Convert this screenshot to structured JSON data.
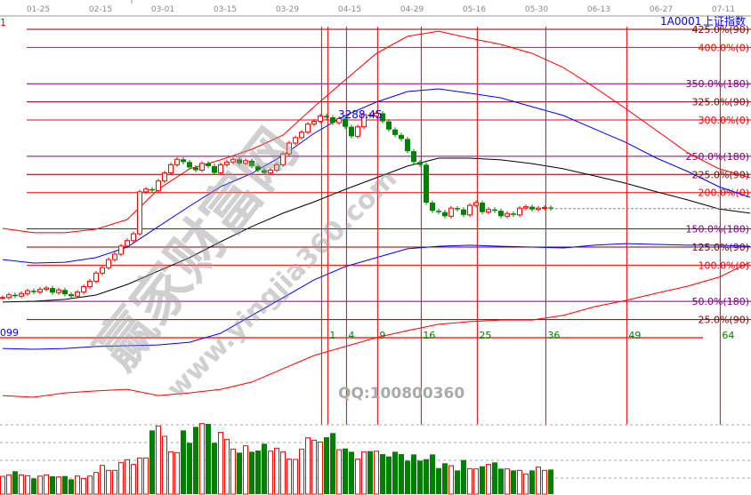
{
  "header": {
    "dates": [
      "01-25",
      "02-15",
      "03-01",
      "03-15",
      "03-29",
      "04-15",
      "04-29",
      "05-16",
      "05-30",
      "06-13",
      "06-27",
      "07-11"
    ],
    "left_label": "1",
    "symbol": "1A0001",
    "name": "上证指数"
  },
  "watermark": {
    "logo_text": "赢家财富网",
    "url": "www.yingjia360.com",
    "qq": "QQ:100800360"
  },
  "colors": {
    "up": "#ff0000",
    "down": "#008000",
    "level_0": "#ff0000",
    "level_90": "#800000",
    "level_180": "#800080",
    "fib_time": "#ff0000",
    "symbol": "#0000ff"
  },
  "chart_data": {
    "type": "candlestick",
    "high_label": "3288.45",
    "low_label": "099",
    "close": [
      2600,
      2610,
      2605,
      2615,
      2625,
      2620,
      2630,
      2635,
      2618,
      2628,
      2612,
      2605,
      2620,
      2640,
      2660,
      2690,
      2710,
      2740,
      2760,
      2790,
      2810,
      2835,
      2990,
      3000,
      2995,
      3030,
      3060,
      3090,
      3110,
      3100,
      3080,
      3070,
      3095,
      3085,
      3060,
      3090,
      3100,
      3110,
      3095,
      3105,
      3085,
      3070,
      3060,
      3070,
      3090,
      3130,
      3170,
      3190,
      3210,
      3240,
      3250,
      3270,
      3265,
      3245,
      3260,
      3230,
      3195,
      3230,
      3275,
      3270,
      3280,
      3250,
      3220,
      3200,
      3185,
      3140,
      3100,
      3090,
      2950,
      2920,
      2915,
      2900,
      2930,
      2925,
      2905,
      2940,
      2950,
      2915,
      2925,
      2920,
      2900,
      2910,
      2905,
      2930,
      2935,
      2925,
      2930,
      2932,
      2928
    ],
    "volume": [
      60,
      65,
      77,
      65,
      62,
      53,
      61,
      65,
      60,
      58,
      61,
      50,
      61,
      53,
      61,
      73,
      97,
      80,
      80,
      107,
      116,
      100,
      122,
      122,
      215,
      230,
      195,
      143,
      140,
      215,
      173,
      227,
      238,
      237,
      173,
      208,
      185,
      152,
      140,
      163,
      143,
      147,
      170,
      145,
      155,
      143,
      118,
      117,
      152,
      190,
      182,
      176,
      192,
      206,
      150,
      154,
      143,
      118,
      143,
      145,
      145,
      135,
      127,
      143,
      135,
      113,
      134,
      113,
      118,
      134,
      88,
      104,
      96,
      80,
      115,
      86,
      85,
      94,
      100,
      107,
      86,
      85,
      80,
      80,
      68,
      80,
      91,
      80,
      83
    ],
    "curves_sample_step": 5,
    "curves": [
      {
        "color": "#ff0000",
        "values": [
          2855,
          2839,
          2839,
          2852,
          2888,
          3000,
          3075,
          3108,
          3147,
          3199,
          3304,
          3403,
          3501,
          3564,
          3583,
          3557,
          3534,
          3501,
          3449,
          3376,
          3298,
          3216,
          3134,
          3075,
          3042
        ]
      },
      {
        "color": "#0000ff",
        "values": [
          2740,
          2727,
          2730,
          2747,
          2786,
          2862,
          2937,
          3009,
          3058,
          3124,
          3206,
          3272,
          3321,
          3360,
          3370,
          3354,
          3337,
          3304,
          3272,
          3222,
          3173,
          3114,
          3065,
          3009,
          2970
        ]
      },
      {
        "color": "#000000",
        "values": [
          2583,
          2586,
          2593,
          2609,
          2648,
          2698,
          2747,
          2806,
          2862,
          2911,
          2953,
          2999,
          3042,
          3085,
          3114,
          3114,
          3108,
          3094,
          3075,
          3049,
          3022,
          2990,
          2960,
          2927,
          2911
        ]
      },
      {
        "color": "#0000ff",
        "values": [
          2412,
          2409,
          2412,
          2419,
          2422,
          2425,
          2435,
          2468,
          2534,
          2599,
          2665,
          2714,
          2747,
          2780,
          2789,
          2793,
          2789,
          2786,
          2783,
          2793,
          2799,
          2796,
          2793,
          2793,
          2789
        ]
      },
      {
        "color": "#ff0000",
        "values": [
          2238,
          2232,
          2248,
          2255,
          2261,
          2238,
          2248,
          2261,
          2288,
          2337,
          2386,
          2419,
          2452,
          2478,
          2501,
          2511,
          2517,
          2517,
          2534,
          2566,
          2589,
          2616,
          2642,
          2675,
          2730
        ]
      }
    ],
    "levels": [
      {
        "pct": 425,
        "label": "425.0%(90)",
        "kind": "90"
      },
      {
        "pct": 400,
        "label": "400.0%(0)",
        "kind": "0"
      },
      {
        "pct": 350,
        "label": "350.0%(180)",
        "kind": "180"
      },
      {
        "pct": 325,
        "label": "325.0%(90)",
        "kind": "90"
      },
      {
        "pct": 300,
        "label": "300.0%(0)",
        "kind": "0"
      },
      {
        "pct": 250,
        "label": "250.0%(180)",
        "kind": "180"
      },
      {
        "pct": 225,
        "label": "225.0%(90)",
        "kind": "90"
      },
      {
        "pct": 200,
        "label": "200.0%(0)",
        "kind": "0"
      },
      {
        "pct": 150,
        "label": "150.0%(180)",
        "kind": "180"
      },
      {
        "pct": 125,
        "label": "125.0%(90)",
        "kind": "90"
      },
      {
        "pct": 100,
        "label": "100.0%(0)",
        "kind": "0"
      },
      {
        "pct": 50,
        "label": "50.0%(180)",
        "kind": "180"
      },
      {
        "pct": 25,
        "label": "25.0%(90)",
        "kind": "90"
      }
    ],
    "fib_time_zones": [
      1,
      4,
      9,
      16,
      25,
      36,
      49,
      64
    ],
    "fib_labels": [
      "1",
      "4",
      "9",
      "16",
      "25",
      "36",
      "49",
      "64"
    ]
  }
}
